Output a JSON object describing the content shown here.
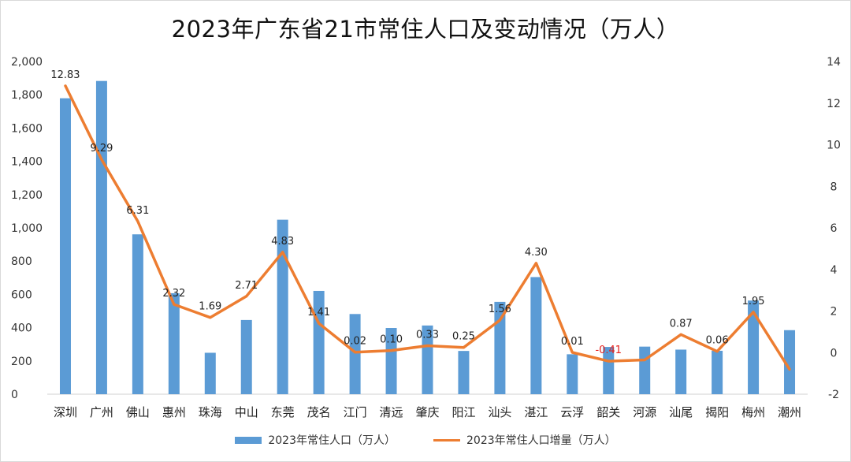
{
  "colors": {
    "bar": "#5b9bd5",
    "line": "#ed7d31",
    "negative_label": "#e8211c"
  },
  "chart_data": {
    "type": "bar+line",
    "title": "2023年广东省21市常住人口及变动情况（万人）",
    "categories": [
      "深圳",
      "广州",
      "佛山",
      "惠州",
      "珠海",
      "中山",
      "东莞",
      "茂名",
      "江门",
      "清远",
      "肇庆",
      "阳江",
      "汕头",
      "湛江",
      "云浮",
      "韶关",
      "河源",
      "汕尾",
      "揭阳",
      "梅州",
      "潮州"
    ],
    "series": [
      {
        "name": "2023年常住人口（万人）",
        "type": "bar",
        "axis": "left",
        "values": [
          1779,
          1883,
          961,
          607,
          249,
          446,
          1049,
          621,
          482,
          398,
          413,
          260,
          555,
          704,
          240,
          284,
          286,
          268,
          261,
          563,
          385
        ]
      },
      {
        "name": "2023年常住人口增量（万人）",
        "type": "line",
        "axis": "right",
        "values": [
          12.83,
          9.29,
          6.31,
          2.32,
          1.69,
          2.71,
          4.83,
          1.41,
          0.02,
          0.1,
          0.33,
          0.25,
          1.56,
          4.3,
          0.01,
          -0.41,
          -0.35,
          0.87,
          0.06,
          1.95,
          -0.8
        ],
        "labels": [
          "12.83",
          "9.29",
          "6.31",
          "2.32",
          "1.69",
          "2.71",
          "4.83",
          "1.41",
          "0.02",
          "0.10",
          "0.33",
          "0.25",
          "1.56",
          "4.30",
          "0.01",
          "-0.41",
          "",
          "0.87",
          "0.06",
          "1.95",
          ""
        ]
      }
    ],
    "y_left": {
      "min": 0,
      "max": 2000,
      "ticks": [
        "0",
        "200",
        "400",
        "600",
        "800",
        "1,000",
        "1,200",
        "1,400",
        "1,600",
        "1,800",
        "2,000"
      ]
    },
    "y_right": {
      "min": -2,
      "max": 14,
      "ticks": [
        "-2",
        "0",
        "2",
        "4",
        "6",
        "8",
        "10",
        "12",
        "14"
      ]
    },
    "grid": false,
    "legend_position": "bottom"
  }
}
